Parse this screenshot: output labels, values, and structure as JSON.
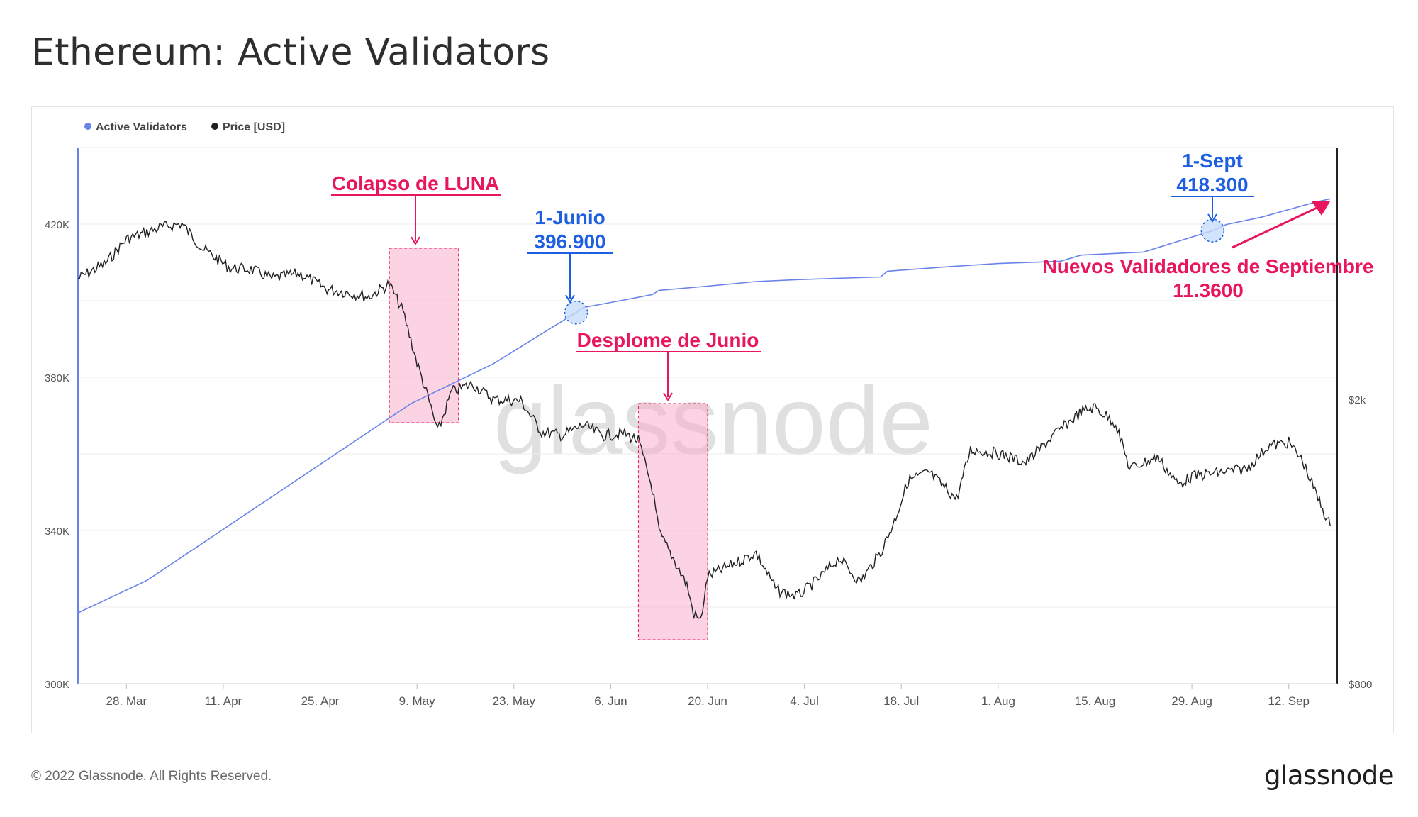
{
  "page": {
    "title": "Ethereum: Active Validators",
    "footer_copyright": "© 2022 Glassnode. All Rights Reserved.",
    "footer_logo": "glassnode",
    "watermark": "glassnode"
  },
  "chart_data": {
    "type": "line",
    "title": "Ethereum: Active Validators",
    "legend": [
      {
        "name": "Active Validators",
        "color": "#6a83ea"
      },
      {
        "name": "Price [USD]",
        "color": "#222222"
      }
    ],
    "legend_placement": "top-left",
    "grid": true,
    "x_axis": {
      "range": [
        "2022-03-21",
        "2022-09-19"
      ],
      "ticks": [
        "28. Mar",
        "11. Apr",
        "25. Apr",
        "9. May",
        "23. May",
        "6. Jun",
        "20. Jun",
        "4. Jul",
        "18. Jul",
        "1. Aug",
        "15. Aug",
        "29. Aug",
        "12. Sep"
      ],
      "tick_dates": [
        "2022-03-28",
        "2022-04-11",
        "2022-04-25",
        "2022-05-09",
        "2022-05-23",
        "2022-06-06",
        "2022-06-20",
        "2022-07-04",
        "2022-07-18",
        "2022-08-01",
        "2022-08-15",
        "2022-08-29",
        "2022-09-12"
      ]
    },
    "y_axis_left": {
      "label": "",
      "range": [
        300000,
        440000
      ],
      "ticks": [
        "300K",
        "340K",
        "380K",
        "420K"
      ],
      "tick_values": [
        300000,
        340000,
        380000,
        420000
      ]
    },
    "y_axis_right": {
      "label": "",
      "scale": "log",
      "range": [
        800,
        4500
      ],
      "ticks": [
        "$800",
        "$2k"
      ],
      "tick_values": [
        800,
        2000
      ]
    },
    "series": [
      {
        "name": "Active Validators",
        "axis": "left",
        "color": "#6a83ea",
        "points": [
          [
            "2022-03-21",
            318500
          ],
          [
            "2022-03-31",
            327000
          ],
          [
            "2022-05-08",
            373000
          ],
          [
            "2022-05-20",
            383500
          ],
          [
            "2022-06-01",
            396900
          ],
          [
            "2022-06-02",
            398200
          ],
          [
            "2022-06-08",
            400200
          ],
          [
            "2022-06-12",
            401600
          ],
          [
            "2022-06-13",
            402700
          ],
          [
            "2022-06-20",
            403800
          ],
          [
            "2022-06-27",
            405000
          ],
          [
            "2022-07-03",
            405500
          ],
          [
            "2022-07-15",
            406200
          ],
          [
            "2022-07-16",
            407700
          ],
          [
            "2022-07-25",
            408900
          ],
          [
            "2022-08-01",
            409700
          ],
          [
            "2022-08-10",
            410300
          ],
          [
            "2022-08-13",
            411900
          ],
          [
            "2022-08-22",
            412700
          ],
          [
            "2022-09-01",
            418300
          ],
          [
            "2022-09-03",
            419900
          ],
          [
            "2022-09-08",
            421800
          ],
          [
            "2022-09-12",
            423800
          ],
          [
            "2022-09-16",
            425800
          ],
          [
            "2022-09-18",
            426600
          ]
        ]
      },
      {
        "name": "Price [USD]",
        "axis": "right",
        "color": "#222222",
        "points": [
          [
            "2022-03-21",
            2950
          ],
          [
            "2022-03-25",
            3100
          ],
          [
            "2022-03-28",
            3350
          ],
          [
            "2022-04-02",
            3480
          ],
          [
            "2022-04-05",
            3520
          ],
          [
            "2022-04-08",
            3250
          ],
          [
            "2022-04-12",
            3050
          ],
          [
            "2022-04-15",
            3040
          ],
          [
            "2022-04-18",
            2950
          ],
          [
            "2022-04-22",
            3000
          ],
          [
            "2022-04-26",
            2850
          ],
          [
            "2022-04-29",
            2820
          ],
          [
            "2022-05-02",
            2780
          ],
          [
            "2022-05-05",
            2900
          ],
          [
            "2022-05-07",
            2650
          ],
          [
            "2022-05-09",
            2250
          ],
          [
            "2022-05-11",
            1950
          ],
          [
            "2022-05-12",
            1800
          ],
          [
            "2022-05-14",
            2050
          ],
          [
            "2022-05-17",
            2100
          ],
          [
            "2022-05-20",
            2000
          ],
          [
            "2022-05-24",
            1990
          ],
          [
            "2022-05-27",
            1800
          ],
          [
            "2022-05-30",
            1780
          ],
          [
            "2022-06-02",
            1840
          ],
          [
            "2022-06-05",
            1780
          ],
          [
            "2022-06-08",
            1790
          ],
          [
            "2022-06-10",
            1750
          ],
          [
            "2022-06-12",
            1500
          ],
          [
            "2022-06-13",
            1300
          ],
          [
            "2022-06-15",
            1200
          ],
          [
            "2022-06-17",
            1100
          ],
          [
            "2022-06-18",
            1000
          ],
          [
            "2022-06-19",
            980
          ],
          [
            "2022-06-20",
            1130
          ],
          [
            "2022-06-24",
            1180
          ],
          [
            "2022-06-27",
            1220
          ],
          [
            "2022-06-30",
            1080
          ],
          [
            "2022-07-03",
            1060
          ],
          [
            "2022-07-06",
            1120
          ],
          [
            "2022-07-09",
            1200
          ],
          [
            "2022-07-12",
            1110
          ],
          [
            "2022-07-15",
            1220
          ],
          [
            "2022-07-17",
            1350
          ],
          [
            "2022-07-19",
            1540
          ],
          [
            "2022-07-22",
            1580
          ],
          [
            "2022-07-26",
            1450
          ],
          [
            "2022-07-28",
            1700
          ],
          [
            "2022-08-01",
            1680
          ],
          [
            "2022-08-05",
            1630
          ],
          [
            "2022-08-09",
            1780
          ],
          [
            "2022-08-13",
            1920
          ],
          [
            "2022-08-15",
            1950
          ],
          [
            "2022-08-18",
            1850
          ],
          [
            "2022-08-20",
            1600
          ],
          [
            "2022-08-24",
            1660
          ],
          [
            "2022-08-27",
            1520
          ],
          [
            "2022-08-29",
            1560
          ],
          [
            "2022-09-02",
            1580
          ],
          [
            "2022-09-06",
            1600
          ],
          [
            "2022-09-09",
            1720
          ],
          [
            "2022-09-12",
            1740
          ],
          [
            "2022-09-14",
            1640
          ],
          [
            "2022-09-16",
            1470
          ],
          [
            "2022-09-18",
            1330
          ]
        ]
      }
    ],
    "annotations": [
      {
        "type": "box",
        "label": "Colapso de LUNA",
        "x_range": [
          "2022-05-05",
          "2022-05-15"
        ]
      },
      {
        "type": "box",
        "label": "Desplome de Junio",
        "x_range": [
          "2022-06-10",
          "2022-06-20"
        ]
      },
      {
        "type": "point",
        "label_date": "1-Junio",
        "label_value": "396.900",
        "x": "2022-06-01",
        "y": 396900
      },
      {
        "type": "point",
        "label_date": "1-Sept",
        "label_value": "418.300",
        "x": "2022-09-01",
        "y": 418300
      },
      {
        "type": "arrow",
        "label": "Nuevos Validadores de Septiembre",
        "value": "11.3600"
      }
    ]
  }
}
